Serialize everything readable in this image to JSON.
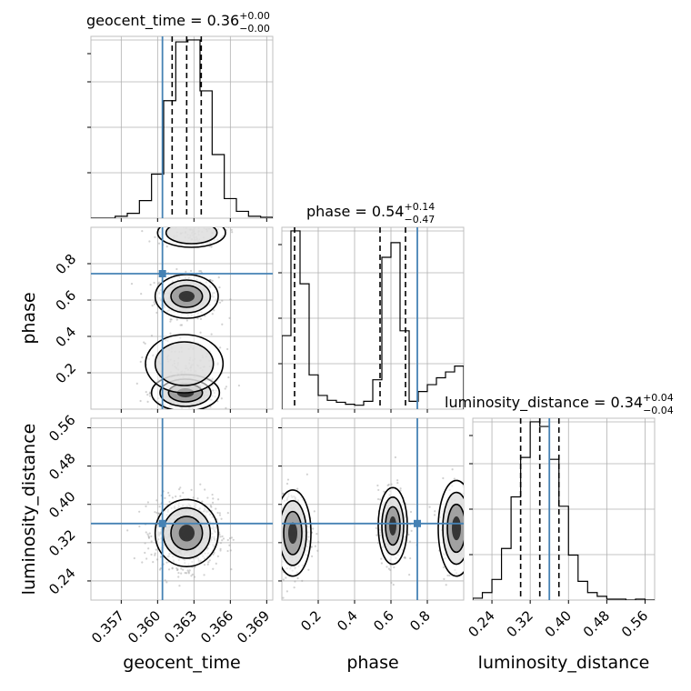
{
  "figure": {
    "type": "corner_plot",
    "truth_color": "#4682b4",
    "hist_color": "#000000",
    "scatter_color": "#9a9a9a"
  },
  "titles": {
    "geocent_time": {
      "prefix": "geocent_time = 0.36",
      "sup": "+0.00",
      "sub": "−0.00"
    },
    "phase": {
      "prefix": "phase = 0.54",
      "sup": "+0.14",
      "sub": "−0.47"
    },
    "luminosity_distance": {
      "prefix": "luminosity_distance = 0.34",
      "sup": "+0.04",
      "sub": "−0.04"
    }
  },
  "axis_labels": {
    "x0": "geocent_time",
    "x1": "phase",
    "x2": "luminosity_distance",
    "y1": "phase",
    "y2": "luminosity_distance"
  },
  "chart_data": [
    {
      "type": "bar",
      "name": "hist-geocent_time",
      "xlim": [
        0.3545,
        0.3695
      ],
      "bins": [
        0.3545,
        0.3555,
        0.3565,
        0.3575,
        0.3585,
        0.3595,
        0.3605,
        0.3615,
        0.3625,
        0.3635,
        0.3645,
        0.3655,
        0.3665,
        0.3675,
        0.3685,
        0.3695
      ],
      "counts": [
        0,
        0,
        2,
        5,
        18,
        45,
        120,
        180,
        182,
        130,
        65,
        20,
        7,
        2,
        1
      ],
      "quantiles": [
        0.3612,
        0.3624,
        0.3636
      ],
      "truth": 0.3604,
      "ticks_x": [
        0.357,
        0.36,
        0.363,
        0.366,
        0.369
      ],
      "tick_labels_x": [
        "0.357",
        "0.360",
        "0.363",
        "0.366",
        "0.369"
      ]
    },
    {
      "type": "bar",
      "name": "hist-phase",
      "xlim": [
        0.0,
        1.0
      ],
      "bins": [
        0.0,
        0.05,
        0.1,
        0.15,
        0.2,
        0.25,
        0.3,
        0.35,
        0.4,
        0.45,
        0.5,
        0.55,
        0.6,
        0.65,
        0.7,
        0.75,
        0.8,
        0.85,
        0.9,
        0.95,
        1.0
      ],
      "counts": [
        75,
        182,
        128,
        35,
        14,
        9,
        7,
        5,
        4,
        8,
        30,
        155,
        170,
        80,
        8,
        18,
        25,
        32,
        38,
        44
      ],
      "quantiles": [
        0.07,
        0.54,
        0.68
      ],
      "truth": 0.745,
      "ticks_x": [
        0.2,
        0.4,
        0.6,
        0.8
      ],
      "tick_labels_x": [
        "0.2",
        "0.4",
        "0.6",
        "0.8"
      ]
    },
    {
      "type": "bar",
      "name": "hist-luminosity_distance",
      "xlim": [
        0.2,
        0.58
      ],
      "bins": [
        0.2,
        0.22,
        0.24,
        0.26,
        0.28,
        0.3,
        0.32,
        0.34,
        0.36,
        0.38,
        0.4,
        0.42,
        0.44,
        0.46,
        0.48,
        0.5,
        0.52,
        0.54,
        0.56,
        0.58
      ],
      "counts": [
        2,
        8,
        22,
        55,
        110,
        152,
        190,
        185,
        150,
        100,
        48,
        20,
        8,
        4,
        1,
        1,
        0,
        1,
        0
      ],
      "quantiles": [
        0.3,
        0.34,
        0.38
      ],
      "truth": 0.36,
      "ticks_x": [
        0.24,
        0.32,
        0.4,
        0.48,
        0.56
      ],
      "tick_labels_x": [
        "0.24",
        "0.32",
        "0.40",
        "0.48",
        "0.56"
      ]
    },
    {
      "type": "scatter",
      "name": "2d-geocent_time-phase",
      "xlim": [
        0.3545,
        0.3695
      ],
      "ylim": [
        0.0,
        1.0
      ],
      "truth": [
        0.3604,
        0.745
      ],
      "clusters": [
        {
          "cx": 0.3624,
          "cy": 0.62,
          "sx": 0.0013,
          "sy": 0.06,
          "weight": 0.35
        },
        {
          "cx": 0.3623,
          "cy": 0.09,
          "sx": 0.0014,
          "sy": 0.05,
          "weight": 0.4
        },
        {
          "cx": 0.3628,
          "cy": 0.97,
          "sx": 0.0014,
          "sy": 0.04,
          "weight": 0.12
        },
        {
          "cx": 0.3622,
          "cy": 0.25,
          "sx": 0.0016,
          "sy": 0.08,
          "weight": 0.13
        }
      ],
      "ticks_y": [
        0.2,
        0.4,
        0.6,
        0.8
      ],
      "tick_labels_y": [
        "0.2",
        "0.4",
        "0.6",
        "0.8"
      ]
    },
    {
      "type": "scatter",
      "name": "2d-geocent_time-luminosity_distance",
      "xlim": [
        0.3545,
        0.3695
      ],
      "ylim": [
        0.2,
        0.58
      ],
      "truth": [
        0.3604,
        0.36
      ],
      "clusters": [
        {
          "cx": 0.3624,
          "cy": 0.34,
          "sx": 0.0013,
          "sy": 0.035,
          "weight": 1.0
        }
      ],
      "ticks_y": [
        0.24,
        0.32,
        0.4,
        0.48,
        0.56
      ],
      "tick_labels_y": [
        "0.24",
        "0.32",
        "0.40",
        "0.48",
        "0.56"
      ]
    },
    {
      "type": "scatter",
      "name": "2d-phase-luminosity_distance",
      "xlim": [
        0.0,
        1.0
      ],
      "ylim": [
        0.2,
        0.58
      ],
      "truth": [
        0.745,
        0.36
      ],
      "clusters": [
        {
          "cx": 0.06,
          "cy": 0.34,
          "sx": 0.05,
          "sy": 0.045,
          "weight": 0.4
        },
        {
          "cx": 0.61,
          "cy": 0.355,
          "sx": 0.04,
          "sy": 0.04,
          "weight": 0.4
        },
        {
          "cx": 0.96,
          "cy": 0.35,
          "sx": 0.05,
          "sy": 0.05,
          "weight": 0.2
        }
      ]
    }
  ]
}
